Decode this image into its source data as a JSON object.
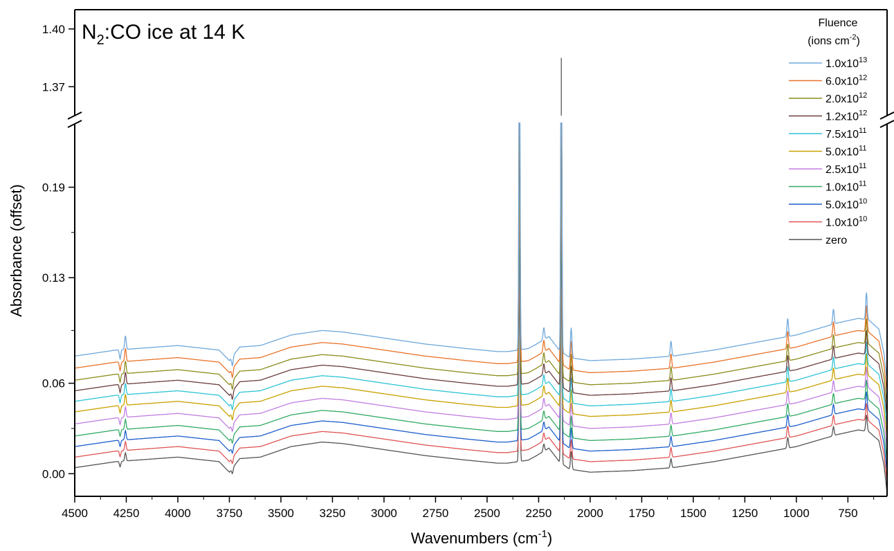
{
  "chart_data": {
    "type": "line",
    "title_main": "N",
    "title_sub": "2",
    "title_rest": ":CO ice at 14 K",
    "xlabel_main": "Wavenumbers (cm",
    "xlabel_sup": "-1",
    "xlabel_close": ")",
    "ylabel": "Absorbance (offset)",
    "x_reversed": true,
    "xlim": [
      4500,
      560
    ],
    "x_ticks": [
      4500,
      4250,
      4000,
      3750,
      3500,
      3250,
      3000,
      2750,
      2500,
      2250,
      2000,
      1750,
      1500,
      1250,
      1000,
      750
    ],
    "x_tick_labels": [
      "4500",
      "4250",
      "4000",
      "3750",
      "3500",
      "3250",
      "3000",
      "2750",
      "2500",
      "2250",
      "2000",
      "1750",
      "1500",
      "1250",
      "1000",
      "750"
    ],
    "y_axis_break": true,
    "ylim_lower": [
      -0.015,
      0.232
    ],
    "ylim_upper": [
      1.355,
      1.41
    ],
    "y_ticks_lower": [
      0.0,
      0.06,
      0.13,
      0.19
    ],
    "y_tick_labels_lower": [
      "0.00",
      "0.06",
      "0.13",
      "0.19"
    ],
    "y_ticks_upper": [
      1.37,
      1.4
    ],
    "y_tick_labels_upper": [
      "1.37",
      "1.40"
    ],
    "legend_title_line1": "Fluence",
    "legend_title_line2_main": "(ions cm",
    "legend_title_line2_sup": "-2",
    "legend_title_line2_close": ")",
    "legend_position": "top-right",
    "series": [
      {
        "name_base": "1.0x10",
        "name_exp": "13",
        "offset": 0.074,
        "color": "#6fa8dc"
      },
      {
        "name_base": "6.0x10",
        "name_exp": "12",
        "offset": 0.066,
        "color": "#e8742c"
      },
      {
        "name_base": "2.0x10",
        "name_exp": "12",
        "offset": 0.058,
        "color": "#8c8c1e"
      },
      {
        "name_base": "1.2x10",
        "name_exp": "12",
        "offset": 0.051,
        "color": "#6b3e3e"
      },
      {
        "name_base": "7.5x10",
        "name_exp": "11",
        "offset": 0.044,
        "color": "#2ec4d6"
      },
      {
        "name_base": "5.0x10",
        "name_exp": "11",
        "offset": 0.037,
        "color": "#c9a100"
      },
      {
        "name_base": "2.5x10",
        "name_exp": "11",
        "offset": 0.029,
        "color": "#c27ee0"
      },
      {
        "name_base": "1.0x10",
        "name_exp": "11",
        "offset": 0.021,
        "color": "#33aa66"
      },
      {
        "name_base": "5.0x10",
        "name_exp": "10",
        "offset": 0.014,
        "color": "#1f5fcc"
      },
      {
        "name_base": "1.0x10",
        "name_exp": "10",
        "offset": 0.007,
        "color": "#e05555"
      },
      {
        "name_base": "zero",
        "name_exp": "",
        "offset": 0.0,
        "color": "#555555"
      }
    ],
    "baseline_profile": {
      "x": [
        4500,
        4300,
        4000,
        3800,
        3750,
        3700,
        3600,
        3450,
        3300,
        3200,
        3000,
        2800,
        2600,
        2450,
        2400,
        2350,
        2300,
        2260,
        2200,
        2150,
        2100,
        2000,
        1800,
        1600,
        1400,
        1200,
        1000,
        800,
        700,
        650,
        600,
        575,
        560
      ],
      "y": [
        0.004,
        0.008,
        0.011,
        0.008,
        0.001,
        0.01,
        0.011,
        0.018,
        0.021,
        0.02,
        0.016,
        0.012,
        0.009,
        0.007,
        0.007,
        0.008,
        0.009,
        0.012,
        0.017,
        0.008,
        0.003,
        0.001,
        0.002,
        0.004,
        0.008,
        0.013,
        0.018,
        0.026,
        0.029,
        0.028,
        0.022,
        0.006,
        -0.013
      ]
    },
    "peaks": [
      {
        "x": 4280,
        "h": -0.006
      },
      {
        "x": 4254,
        "h": 0.009
      },
      {
        "x": 3735,
        "h": -0.006
      },
      {
        "x": 2343,
        "h": 0.225
      },
      {
        "x": 2225,
        "h": 0.008
      },
      {
        "x": 2140,
        "h": 0.225
      },
      {
        "x": 2092,
        "h": 0.02
      },
      {
        "x": 1608,
        "h": 0.01
      },
      {
        "x": 1042,
        "h": 0.012
      },
      {
        "x": 820,
        "h": 0.01
      },
      {
        "x": 660,
        "h": 0.018
      }
    ],
    "upper_spike": {
      "x": 2140,
      "y": 1.385
    }
  }
}
